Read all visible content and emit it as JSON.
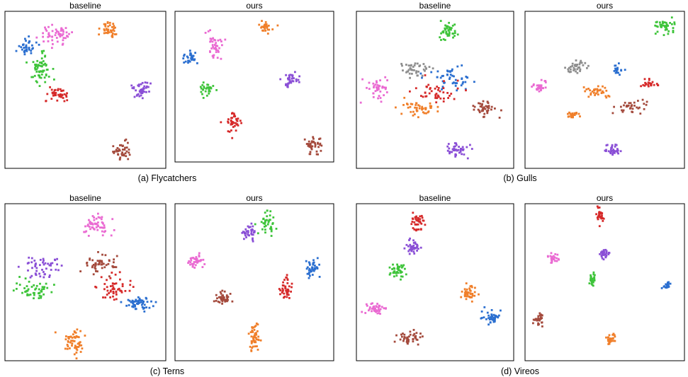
{
  "figure": {
    "palette": {
      "blue": "#2b6fd0",
      "orange": "#f07f2a",
      "green": "#3ec43a",
      "red": "#d62a2a",
      "purple": "#8a4fd6",
      "brown": "#a44a3c",
      "pink": "#ea6ad2",
      "gray": "#8e8e8e"
    }
  },
  "chart_data": [
    {
      "type": "scatter",
      "group_caption": "(a) Flycatchers",
      "subplots": [
        {
          "title": "baseline",
          "clusters": [
            {
              "color": "blue",
              "center": [
                0.14,
                0.22
              ],
              "spread": [
                0.05,
                0.05
              ],
              "n": 35
            },
            {
              "color": "pink",
              "center": [
                0.32,
                0.15
              ],
              "spread": [
                0.09,
                0.05
              ],
              "n": 55
            },
            {
              "color": "green",
              "center": [
                0.22,
                0.38
              ],
              "spread": [
                0.07,
                0.09
              ],
              "n": 60
            },
            {
              "color": "red",
              "center": [
                0.33,
                0.53
              ],
              "spread": [
                0.07,
                0.05
              ],
              "n": 40
            },
            {
              "color": "orange",
              "center": [
                0.65,
                0.12
              ],
              "spread": [
                0.05,
                0.05
              ],
              "n": 40
            },
            {
              "color": "purple",
              "center": [
                0.85,
                0.5
              ],
              "spread": [
                0.05,
                0.05
              ],
              "n": 40
            },
            {
              "color": "brown",
              "center": [
                0.72,
                0.89
              ],
              "spread": [
                0.05,
                0.05
              ],
              "n": 40
            }
          ]
        },
        {
          "title": "ours",
          "clusters": [
            {
              "color": "blue",
              "center": [
                0.1,
                0.3
              ],
              "spread": [
                0.04,
                0.04
              ],
              "n": 30
            },
            {
              "color": "pink",
              "center": [
                0.25,
                0.24
              ],
              "spread": [
                0.05,
                0.09
              ],
              "n": 40
            },
            {
              "color": "green",
              "center": [
                0.2,
                0.52
              ],
              "spread": [
                0.04,
                0.04
              ],
              "n": 30
            },
            {
              "color": "red",
              "center": [
                0.37,
                0.73
              ],
              "spread": [
                0.04,
                0.06
              ],
              "n": 40
            },
            {
              "color": "orange",
              "center": [
                0.57,
                0.11
              ],
              "spread": [
                0.04,
                0.04
              ],
              "n": 30
            },
            {
              "color": "purple",
              "center": [
                0.73,
                0.46
              ],
              "spread": [
                0.05,
                0.04
              ],
              "n": 35
            },
            {
              "color": "brown",
              "center": [
                0.88,
                0.89
              ],
              "spread": [
                0.05,
                0.05
              ],
              "n": 40
            }
          ]
        }
      ]
    },
    {
      "type": "scatter",
      "group_caption": "(b) Gulls",
      "subplots": [
        {
          "title": "baseline",
          "clusters": [
            {
              "color": "green",
              "center": [
                0.58,
                0.12
              ],
              "spread": [
                0.06,
                0.05
              ],
              "n": 45
            },
            {
              "color": "pink",
              "center": [
                0.12,
                0.48
              ],
              "spread": [
                0.06,
                0.07
              ],
              "n": 40
            },
            {
              "color": "gray",
              "center": [
                0.38,
                0.37
              ],
              "spread": [
                0.08,
                0.05
              ],
              "n": 40
            },
            {
              "color": "blue",
              "center": [
                0.58,
                0.42
              ],
              "spread": [
                0.12,
                0.07
              ],
              "n": 50
            },
            {
              "color": "red",
              "center": [
                0.52,
                0.53
              ],
              "spread": [
                0.12,
                0.07
              ],
              "n": 45
            },
            {
              "color": "orange",
              "center": [
                0.4,
                0.62
              ],
              "spread": [
                0.12,
                0.05
              ],
              "n": 45
            },
            {
              "color": "brown",
              "center": [
                0.82,
                0.62
              ],
              "spread": [
                0.07,
                0.05
              ],
              "n": 40
            },
            {
              "color": "purple",
              "center": [
                0.64,
                0.88
              ],
              "spread": [
                0.07,
                0.04
              ],
              "n": 45
            }
          ]
        },
        {
          "title": "ours",
          "clusters": [
            {
              "color": "green",
              "center": [
                0.88,
                0.09
              ],
              "spread": [
                0.05,
                0.04
              ],
              "n": 40
            },
            {
              "color": "gray",
              "center": [
                0.32,
                0.36
              ],
              "spread": [
                0.06,
                0.04
              ],
              "n": 35
            },
            {
              "color": "blue",
              "center": [
                0.58,
                0.37
              ],
              "spread": [
                0.03,
                0.03
              ],
              "n": 20
            },
            {
              "color": "pink",
              "center": [
                0.09,
                0.48
              ],
              "spread": [
                0.04,
                0.03
              ],
              "n": 30
            },
            {
              "color": "orange",
              "center": [
                0.45,
                0.51
              ],
              "spread": [
                0.07,
                0.04
              ],
              "n": 35
            },
            {
              "color": "red",
              "center": [
                0.77,
                0.46
              ],
              "spread": [
                0.05,
                0.03
              ],
              "n": 25
            },
            {
              "color": "brown",
              "center": [
                0.67,
                0.6
              ],
              "spread": [
                0.07,
                0.04
              ],
              "n": 35
            },
            {
              "color": "orange",
              "center": [
                0.3,
                0.66
              ],
              "spread": [
                0.03,
                0.02
              ],
              "n": 20
            },
            {
              "color": "purple",
              "center": [
                0.55,
                0.88
              ],
              "spread": [
                0.04,
                0.04
              ],
              "n": 35
            }
          ]
        }
      ]
    },
    {
      "type": "scatter",
      "group_caption": "(c) Terns",
      "subplots": [
        {
          "title": "baseline",
          "clusters": [
            {
              "color": "pink",
              "center": [
                0.57,
                0.14
              ],
              "spread": [
                0.08,
                0.06
              ],
              "n": 55
            },
            {
              "color": "purple",
              "center": [
                0.22,
                0.4
              ],
              "spread": [
                0.1,
                0.07
              ],
              "n": 50
            },
            {
              "color": "brown",
              "center": [
                0.6,
                0.38
              ],
              "spread": [
                0.12,
                0.06
              ],
              "n": 50
            },
            {
              "color": "green",
              "center": [
                0.18,
                0.55
              ],
              "spread": [
                0.1,
                0.06
              ],
              "n": 50
            },
            {
              "color": "red",
              "center": [
                0.68,
                0.54
              ],
              "spread": [
                0.1,
                0.07
              ],
              "n": 50
            },
            {
              "color": "blue",
              "center": [
                0.83,
                0.63
              ],
              "spread": [
                0.08,
                0.04
              ],
              "n": 55
            },
            {
              "color": "orange",
              "center": [
                0.43,
                0.88
              ],
              "spread": [
                0.07,
                0.07
              ],
              "n": 55
            }
          ]
        },
        {
          "title": "ours",
          "clusters": [
            {
              "color": "green",
              "center": [
                0.58,
                0.13
              ],
              "spread": [
                0.05,
                0.08
              ],
              "n": 40
            },
            {
              "color": "purple",
              "center": [
                0.47,
                0.17
              ],
              "spread": [
                0.04,
                0.05
              ],
              "n": 35
            },
            {
              "color": "pink",
              "center": [
                0.13,
                0.36
              ],
              "spread": [
                0.05,
                0.04
              ],
              "n": 40
            },
            {
              "color": "blue",
              "center": [
                0.87,
                0.41
              ],
              "spread": [
                0.04,
                0.05
              ],
              "n": 40
            },
            {
              "color": "red",
              "center": [
                0.7,
                0.54
              ],
              "spread": [
                0.04,
                0.06
              ],
              "n": 40
            },
            {
              "color": "brown",
              "center": [
                0.3,
                0.6
              ],
              "spread": [
                0.04,
                0.04
              ],
              "n": 40
            },
            {
              "color": "orange",
              "center": [
                0.5,
                0.85
              ],
              "spread": [
                0.03,
                0.1
              ],
              "n": 50
            }
          ]
        }
      ]
    },
    {
      "type": "scatter",
      "group_caption": "(d) Vireos",
      "subplots": [
        {
          "title": "baseline",
          "clusters": [
            {
              "color": "red",
              "center": [
                0.39,
                0.11
              ],
              "spread": [
                0.04,
                0.05
              ],
              "n": 40
            },
            {
              "color": "purple",
              "center": [
                0.36,
                0.28
              ],
              "spread": [
                0.05,
                0.04
              ],
              "n": 40
            },
            {
              "color": "green",
              "center": [
                0.26,
                0.43
              ],
              "spread": [
                0.05,
                0.04
              ],
              "n": 40
            },
            {
              "color": "orange",
              "center": [
                0.71,
                0.57
              ],
              "spread": [
                0.05,
                0.04
              ],
              "n": 40
            },
            {
              "color": "pink",
              "center": [
                0.13,
                0.67
              ],
              "spread": [
                0.06,
                0.04
              ],
              "n": 40
            },
            {
              "color": "blue",
              "center": [
                0.87,
                0.73
              ],
              "spread": [
                0.05,
                0.04
              ],
              "n": 40
            },
            {
              "color": "brown",
              "center": [
                0.35,
                0.86
              ],
              "spread": [
                0.06,
                0.04
              ],
              "n": 40
            }
          ]
        },
        {
          "title": "ours",
          "clusters": [
            {
              "color": "red",
              "center": [
                0.47,
                0.08
              ],
              "spread": [
                0.02,
                0.04
              ],
              "n": 30
            },
            {
              "color": "purple",
              "center": [
                0.5,
                0.32
              ],
              "spread": [
                0.03,
                0.03
              ],
              "n": 30
            },
            {
              "color": "pink",
              "center": [
                0.18,
                0.35
              ],
              "spread": [
                0.03,
                0.03
              ],
              "n": 30
            },
            {
              "color": "green",
              "center": [
                0.42,
                0.48
              ],
              "spread": [
                0.02,
                0.05
              ],
              "n": 30
            },
            {
              "color": "blue",
              "center": [
                0.89,
                0.52
              ],
              "spread": [
                0.02,
                0.02
              ],
              "n": 25
            },
            {
              "color": "brown",
              "center": [
                0.09,
                0.74
              ],
              "spread": [
                0.03,
                0.03
              ],
              "n": 30
            },
            {
              "color": "orange",
              "center": [
                0.54,
                0.86
              ],
              "spread": [
                0.03,
                0.03
              ],
              "n": 30
            }
          ]
        }
      ]
    }
  ]
}
